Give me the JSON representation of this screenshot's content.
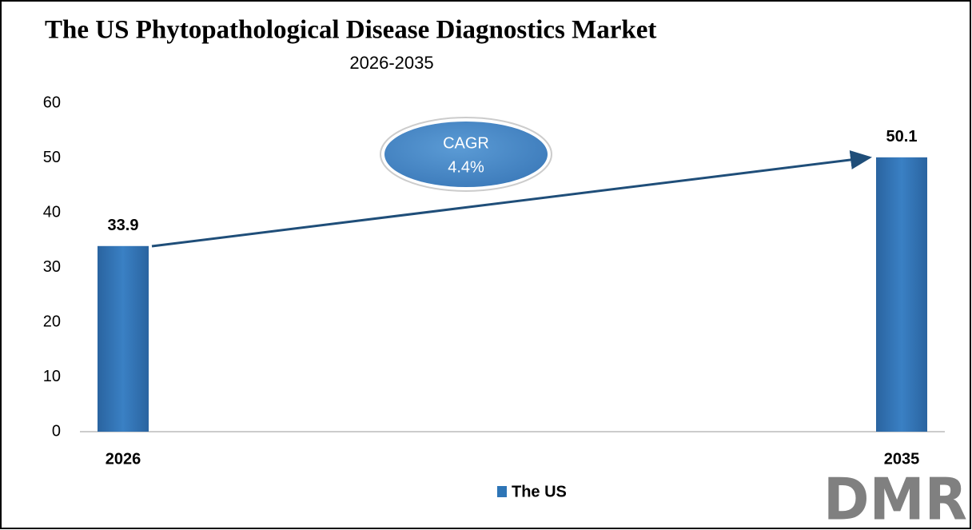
{
  "chart_data": {
    "type": "bar",
    "title": "The US Phytopathological Disease Diagnostics Market",
    "subtitle": "2026-2035",
    "categories": [
      "2026",
      "2035"
    ],
    "series": [
      {
        "name": "The US",
        "color": "#2e75b6",
        "values": [
          33.9,
          50.1
        ]
      }
    ],
    "ylim": [
      0,
      60
    ],
    "yticks": [
      0,
      10,
      20,
      30,
      40,
      50,
      60
    ],
    "grid": false,
    "annotation": {
      "label": "CAGR",
      "value": "4.4%"
    },
    "logo": "DMR"
  }
}
